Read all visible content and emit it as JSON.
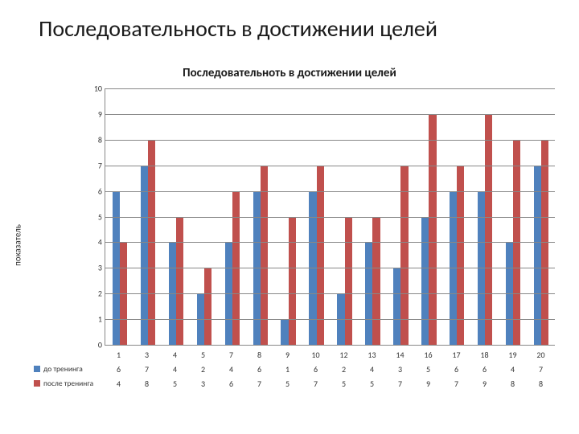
{
  "slide": {
    "title": "Последовательность в достижении целей"
  },
  "chart": {
    "type": "bar",
    "title": "Последовательноть в достижении целей",
    "y_axis_label": "показатель",
    "ylim": [
      0,
      10
    ],
    "ytick_step": 1,
    "title_fontsize": 15,
    "title_weight": "700",
    "label_fontsize": 11,
    "tick_fontsize": 10,
    "background_color": "#ffffff",
    "grid_color": "#888888",
    "plot_border_color": "#888888",
    "categories": [
      "1",
      "3",
      "4",
      "5",
      "7",
      "8",
      "9",
      "10",
      "12",
      "13",
      "14",
      "16",
      "17",
      "18",
      "19",
      "20"
    ],
    "series": [
      {
        "name": "до тренинга",
        "color": "#4f81bd",
        "values": [
          6,
          7,
          4,
          2,
          4,
          6,
          1,
          6,
          2,
          4,
          3,
          5,
          6,
          6,
          4,
          7
        ]
      },
      {
        "name": "после тренинга",
        "color": "#c0504d",
        "values": [
          4,
          8,
          5,
          3,
          6,
          7,
          5,
          7,
          5,
          5,
          7,
          9,
          7,
          9,
          8,
          8
        ]
      }
    ],
    "bar_group_width": 0.82
  }
}
